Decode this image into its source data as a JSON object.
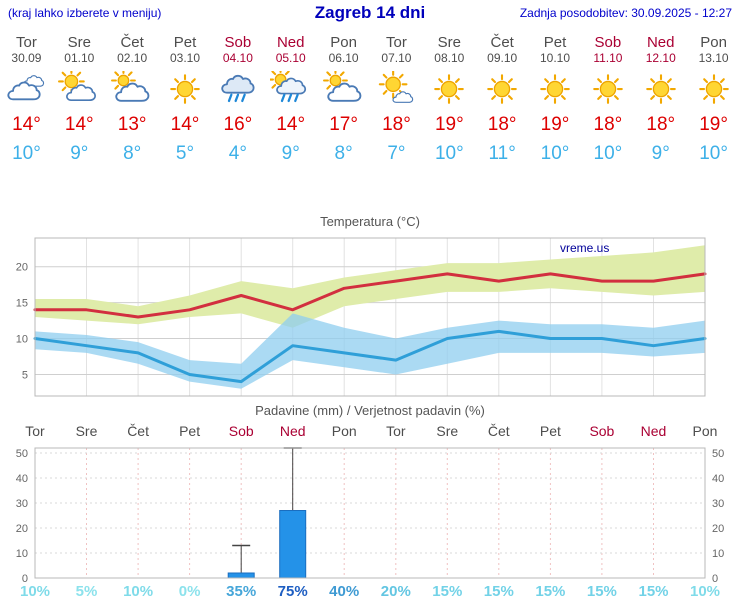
{
  "header": {
    "left_note": "(kraj lahko izberete v meniju)",
    "title": "Zagreb 14 dni",
    "updated": "Zadnja posodobitev: 30.09.2025 - 12:27"
  },
  "colors": {
    "header_blue": "#0000cc",
    "weekday_text": "#4d4d4d",
    "weekend_text": "#aa0033",
    "temp_max_red": "#dd0000",
    "temp_min_blue": "#3db0e8",
    "watermark_blue": "#000099",
    "bar_blue": "#2492e8"
  },
  "days": [
    {
      "name": "Tor",
      "date": "30.09",
      "weekend": false,
      "icon": "cloudy",
      "tmax": "14°",
      "tmin": "10°"
    },
    {
      "name": "Sre",
      "date": "01.10",
      "weekend": false,
      "icon": "partly-cloudy",
      "tmax": "14°",
      "tmin": "9°"
    },
    {
      "name": "Čet",
      "date": "02.10",
      "weekend": false,
      "icon": "mostly-cloudy",
      "tmax": "13°",
      "tmin": "8°"
    },
    {
      "name": "Pet",
      "date": "03.10",
      "weekend": false,
      "icon": "sunny",
      "tmax": "14°",
      "tmin": "5°"
    },
    {
      "name": "Sob",
      "date": "04.10",
      "weekend": true,
      "icon": "rain",
      "tmax": "16°",
      "tmin": "4°"
    },
    {
      "name": "Ned",
      "date": "05.10",
      "weekend": true,
      "icon": "sun-rain",
      "tmax": "14°",
      "tmin": "9°"
    },
    {
      "name": "Pon",
      "date": "06.10",
      "weekend": false,
      "icon": "mostly-cloudy",
      "tmax": "17°",
      "tmin": "8°"
    },
    {
      "name": "Tor",
      "date": "07.10",
      "weekend": false,
      "icon": "mostly-sunny",
      "tmax": "18°",
      "tmin": "7°"
    },
    {
      "name": "Sre",
      "date": "08.10",
      "weekend": false,
      "icon": "sunny",
      "tmax": "19°",
      "tmin": "10°"
    },
    {
      "name": "Čet",
      "date": "09.10",
      "weekend": false,
      "icon": "sunny",
      "tmax": "18°",
      "tmin": "11°"
    },
    {
      "name": "Pet",
      "date": "10.10",
      "weekend": false,
      "icon": "sunny",
      "tmax": "19°",
      "tmin": "10°"
    },
    {
      "name": "Sob",
      "date": "11.10",
      "weekend": true,
      "icon": "sunny",
      "tmax": "18°",
      "tmin": "10°"
    },
    {
      "name": "Ned",
      "date": "12.10",
      "weekend": true,
      "icon": "sunny",
      "tmax": "18°",
      "tmin": "9°"
    },
    {
      "name": "Pon",
      "date": "13.10",
      "weekend": false,
      "icon": "sunny",
      "tmax": "19°",
      "tmin": "10°"
    }
  ],
  "chart_data": [
    {
      "type": "line",
      "title": "Temperatura (°C)",
      "x_labels": [
        "Tor",
        "Sre",
        "Čet",
        "Pet",
        "Sob",
        "Ned",
        "Pon",
        "Tor",
        "Sre",
        "Čet",
        "Pet",
        "Sob",
        "Ned",
        "Pon"
      ],
      "ylim": [
        2,
        24
      ],
      "yticks": [
        5,
        10,
        15,
        20
      ],
      "watermark": "vreme.us",
      "series": [
        {
          "name": "temp-max",
          "color": "#d22f3f",
          "values": [
            14,
            14,
            13,
            14,
            16,
            14,
            17,
            18,
            19,
            18,
            19,
            18,
            18,
            19
          ]
        },
        {
          "name": "temp-min",
          "color": "#2f9fd8",
          "values": [
            10,
            9,
            8,
            5,
            4,
            9,
            8,
            7,
            10,
            11,
            10,
            10,
            9,
            10
          ]
        }
      ],
      "bands": [
        {
          "name": "temp-max-range",
          "color": "#dfecaa",
          "opacity": 1,
          "upper": [
            15.5,
            15.5,
            14.5,
            16,
            18,
            17,
            18.5,
            19.5,
            20.5,
            20.5,
            21,
            21.5,
            22,
            23
          ],
          "lower": [
            13,
            12.5,
            12,
            13,
            13.5,
            11.5,
            14.5,
            15.5,
            16.5,
            16.5,
            17,
            16.5,
            16,
            16.5
          ]
        },
        {
          "name": "temp-min-range",
          "color": "#8fcdef",
          "opacity": 0.75,
          "upper": [
            11,
            10.5,
            9.5,
            7,
            6.5,
            13.5,
            11.5,
            10,
            11.5,
            12.5,
            12,
            12,
            11.5,
            12.5
          ],
          "lower": [
            8.5,
            8,
            6.5,
            4,
            3,
            7,
            6,
            5,
            6.5,
            8,
            8,
            8,
            7.5,
            8
          ]
        }
      ]
    },
    {
      "type": "bar",
      "title": "Padavine (mm) / Verjetnost padavin (%)",
      "categories": [
        "Tor",
        "Sre",
        "Čet",
        "Pet",
        "Sob",
        "Ned",
        "Pon",
        "Tor",
        "Sre",
        "Čet",
        "Pet",
        "Sob",
        "Ned",
        "Pon"
      ],
      "weekend": [
        false,
        false,
        false,
        false,
        true,
        true,
        false,
        false,
        false,
        false,
        false,
        true,
        true,
        false
      ],
      "values": [
        0,
        0,
        0,
        0,
        2,
        27,
        0,
        0,
        0,
        0,
        0,
        0,
        0,
        0
      ],
      "whisker_max": [
        0,
        0,
        0,
        0,
        13,
        52,
        0,
        0,
        0,
        0,
        0,
        0,
        0,
        0
      ],
      "ylim": [
        0,
        52
      ],
      "yticks": [
        0,
        10,
        20,
        30,
        40,
        50
      ],
      "probability": [
        {
          "text": "10%",
          "color": "#7fdbe9"
        },
        {
          "text": "5%",
          "color": "#8ce2ec"
        },
        {
          "text": "10%",
          "color": "#7fdbe9"
        },
        {
          "text": "0%",
          "color": "#8ce2ec"
        },
        {
          "text": "35%",
          "color": "#46a6d9"
        },
        {
          "text": "75%",
          "color": "#1e5ec2"
        },
        {
          "text": "40%",
          "color": "#3e9ad3"
        },
        {
          "text": "20%",
          "color": "#63c6e2"
        },
        {
          "text": "15%",
          "color": "#72d2e7"
        },
        {
          "text": "15%",
          "color": "#72d2e7"
        },
        {
          "text": "15%",
          "color": "#72d2e7"
        },
        {
          "text": "15%",
          "color": "#72d2e7"
        },
        {
          "text": "15%",
          "color": "#72d2e7"
        },
        {
          "text": "10%",
          "color": "#7fdbe9"
        }
      ]
    }
  ]
}
